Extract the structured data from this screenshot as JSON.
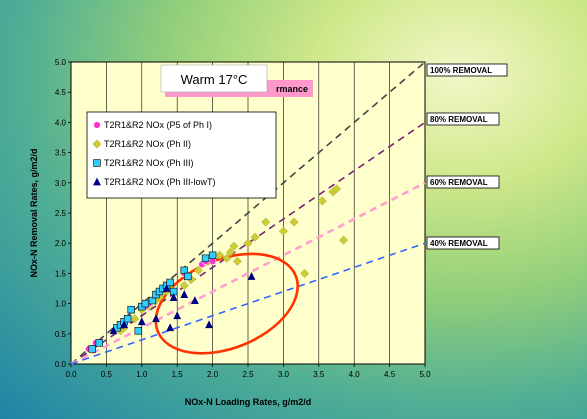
{
  "chart_data": {
    "type": "scatter",
    "title": "Warm 17°C",
    "subtitle": "rmance",
    "xlabel": "NOx-N Loading Rates, g/m2/d",
    "ylabel": "NOx-N Removal Rates, g/m2/d",
    "xlim": [
      0,
      5
    ],
    "ylim": [
      0,
      5
    ],
    "xticks": [
      "0.0",
      "0.5",
      "1.0",
      "1.5",
      "2.0",
      "2.5",
      "3.0",
      "3.5",
      "4.0",
      "4.5",
      "5.0"
    ],
    "yticks": [
      "0.0",
      "0.5",
      "1.0",
      "1.5",
      "2.0",
      "2.5",
      "3.0",
      "3.5",
      "4.0",
      "4.5",
      "5.0"
    ],
    "grid": "vertical",
    "legend_position": "upper-left",
    "colors": {
      "plot_bg": "#ffffcc",
      "series1": "#ff33cc",
      "series2": "#cccc33",
      "series3": "#33ccff",
      "series4": "#000080",
      "ellipse": "#ff3300"
    },
    "reference_lines": [
      {
        "label": "100% REMOVAL",
        "slope": 1.0,
        "color": "#444444"
      },
      {
        "label": "80% REMOVAL",
        "slope": 0.8,
        "color": "#772277"
      },
      {
        "label": "60% REMOVAL",
        "slope": 0.6,
        "color": "#ff9fd0"
      },
      {
        "label": "40% REMOVAL",
        "slope": 0.4,
        "color": "#3366ff"
      }
    ],
    "series": [
      {
        "name": "T2R1&R2 NOx (P5 of Ph I)",
        "marker": "circle",
        "x": [
          0.25,
          0.35,
          1.05,
          1.1,
          1.6,
          1.85,
          1.9,
          2.0
        ],
        "y": [
          0.25,
          0.35,
          0.95,
          1.0,
          1.5,
          1.65,
          1.7,
          1.7
        ]
      },
      {
        "name": "T2R1&R2 NOx (Ph II)",
        "marker": "diamond",
        "x": [
          0.7,
          0.75,
          0.9,
          1.0,
          1.1,
          1.2,
          1.25,
          1.35,
          1.4,
          1.6,
          1.7,
          1.8,
          2.1,
          2.2,
          2.25,
          2.3,
          2.35,
          2.5,
          2.6,
          2.75,
          3.0,
          3.15,
          3.3,
          3.55,
          3.7,
          3.75,
          3.85
        ],
        "y": [
          0.55,
          0.6,
          0.75,
          0.9,
          0.95,
          1.05,
          1.1,
          1.2,
          1.25,
          1.3,
          1.4,
          1.55,
          1.8,
          1.75,
          1.85,
          1.95,
          1.7,
          2.0,
          2.1,
          2.35,
          2.2,
          2.35,
          1.5,
          2.7,
          2.85,
          2.9,
          2.05
        ]
      },
      {
        "name": "T2R1&R2 NOx (Ph III)",
        "marker": "square",
        "x": [
          0.3,
          0.4,
          0.65,
          0.7,
          0.75,
          0.8,
          0.85,
          0.95,
          1.0,
          1.05,
          1.15,
          1.2,
          1.25,
          1.3,
          1.35,
          1.4,
          1.45,
          1.6,
          1.65,
          1.9,
          2.0
        ],
        "y": [
          0.25,
          0.35,
          0.6,
          0.65,
          0.7,
          0.75,
          0.9,
          0.55,
          0.95,
          1.0,
          1.05,
          1.15,
          1.2,
          1.25,
          1.3,
          1.35,
          1.2,
          1.55,
          1.45,
          1.75,
          1.8
        ]
      },
      {
        "name": "T2R1&R2 NOx (Ph III-lowT)",
        "marker": "triangle",
        "x": [
          0.6,
          0.75,
          1.0,
          1.2,
          1.35,
          1.4,
          1.45,
          1.5,
          1.6,
          1.75,
          1.95,
          2.55
        ],
        "y": [
          0.55,
          0.65,
          0.7,
          0.75,
          1.25,
          0.6,
          1.1,
          0.8,
          1.15,
          1.05,
          0.65,
          1.45
        ]
      }
    ],
    "annotations": [
      {
        "type": "ellipse",
        "note": "highlighted low-temperature cluster"
      }
    ]
  }
}
